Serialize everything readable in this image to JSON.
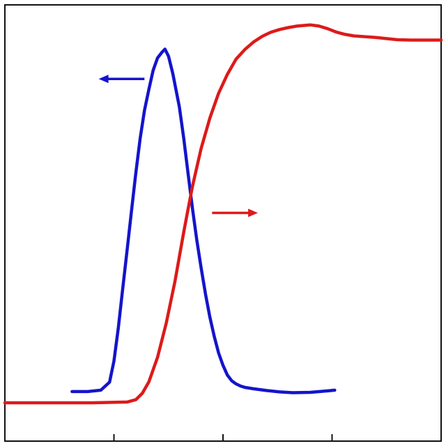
{
  "chart_data": {
    "type": "line",
    "title": "",
    "xlabel": "",
    "ylabel_left": "",
    "ylabel_right": "",
    "xlim": [
      0,
      100
    ],
    "ylim_left": [
      0,
      100
    ],
    "ylim_right": [
      0,
      100
    ],
    "x_ticks": [
      25,
      50,
      75
    ],
    "grid": false,
    "series": [
      {
        "axis": "left",
        "color": "#1414cc",
        "x": [
          15.4,
          19,
          22,
          24,
          25,
          26,
          27,
          28,
          29,
          30,
          31,
          32,
          33,
          34,
          35,
          36,
          36.7,
          37.5,
          38.5,
          40,
          41,
          42,
          43,
          44,
          45,
          46,
          47,
          48,
          49,
          50,
          51,
          52,
          53,
          54,
          55,
          57,
          60,
          63,
          66,
          70,
          74,
          75.6
        ],
        "y": [
          1.8,
          1.8,
          2.2,
          4.5,
          10.5,
          20,
          31,
          42,
          53,
          64,
          74,
          82,
          88,
          93.5,
          97,
          98.6,
          99.5,
          97.5,
          92.5,
          83,
          74,
          64,
          54,
          45,
          37,
          29.5,
          23,
          17.5,
          12.8,
          9.3,
          6.5,
          4.9,
          4,
          3.4,
          3,
          2.6,
          2.1,
          1.7,
          1.5,
          1.6,
          2,
          2.2
        ]
      },
      {
        "axis": "right",
        "color": "#dd1a1a",
        "x": [
          0,
          10,
          20,
          28,
          30,
          31.5,
          33,
          35,
          37,
          39,
          40,
          41,
          42,
          43,
          44,
          45,
          47,
          49,
          51,
          53,
          55,
          57,
          59,
          61,
          63,
          65,
          67,
          70,
          72,
          74,
          76,
          78,
          80,
          85,
          90,
          93,
          100
        ],
        "y": [
          0,
          0,
          0,
          0.2,
          0.8,
          2.5,
          5.5,
          12,
          21,
          32,
          38.5,
          45,
          51,
          57,
          62,
          67,
          75,
          81.5,
          86.5,
          90.5,
          93,
          95,
          96.5,
          97.6,
          98.3,
          98.8,
          99.2,
          99.5,
          99.2,
          98.5,
          97.6,
          97,
          96.6,
          96.2,
          95.6,
          95.5,
          95.5
        ]
      }
    ],
    "annotations": [
      {
        "type": "arrow",
        "direction": "left",
        "series_axis": "left",
        "color": "#1414cc",
        "x_from": 32,
        "x_to": 21.5,
        "y": 91
      },
      {
        "type": "arrow",
        "direction": "right",
        "series_axis": "right",
        "color": "#dd1a1a",
        "x_from": 47.5,
        "x_to": 58,
        "y": 50
      }
    ]
  }
}
